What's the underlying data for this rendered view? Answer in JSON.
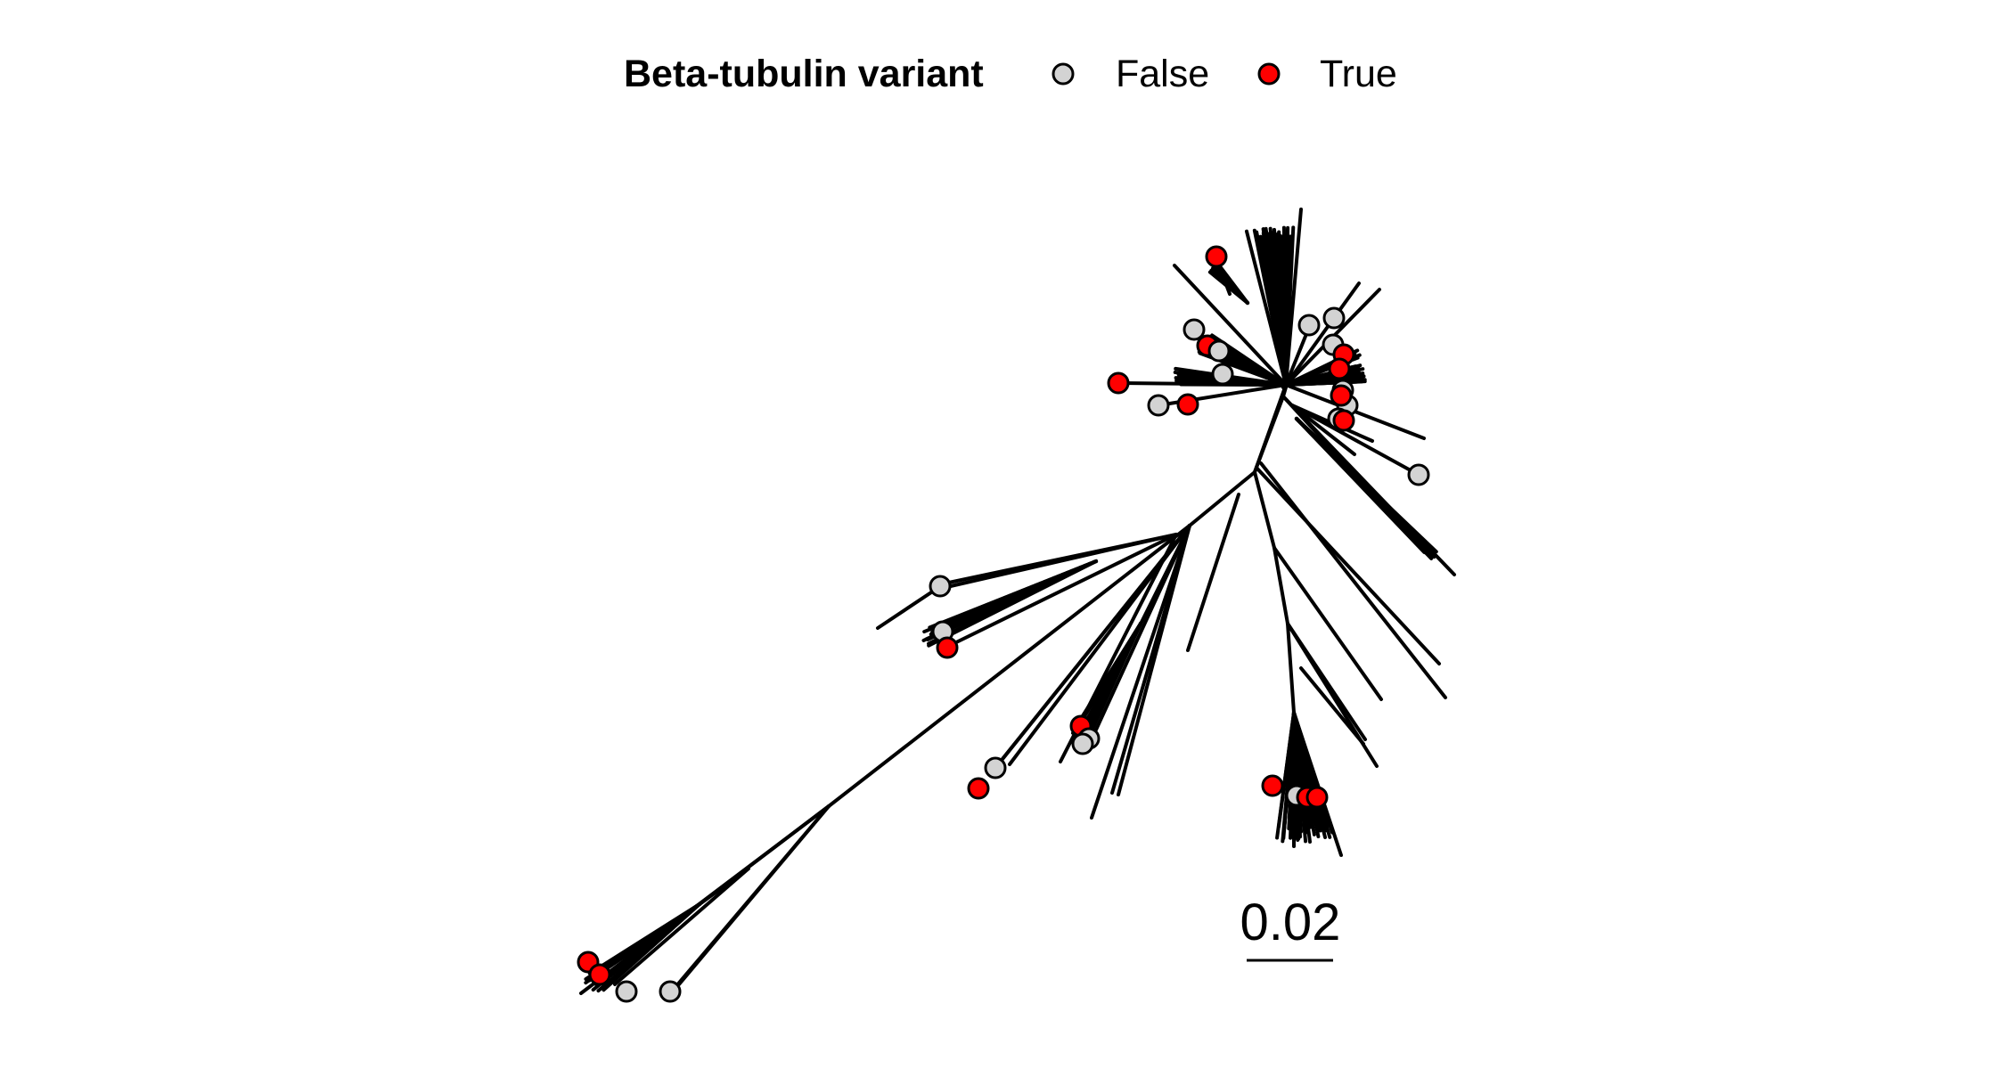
{
  "legend": {
    "title": "Beta-tubulin variant",
    "items": [
      {
        "label": "False",
        "color": "#d3d3d3"
      },
      {
        "label": "True",
        "color": "#ff0000"
      }
    ]
  },
  "scale_bar": {
    "label": "0.02",
    "value": 0.02
  },
  "tree": {
    "layout": "unrooted",
    "tip_states": [
      "False",
      "True"
    ]
  }
}
